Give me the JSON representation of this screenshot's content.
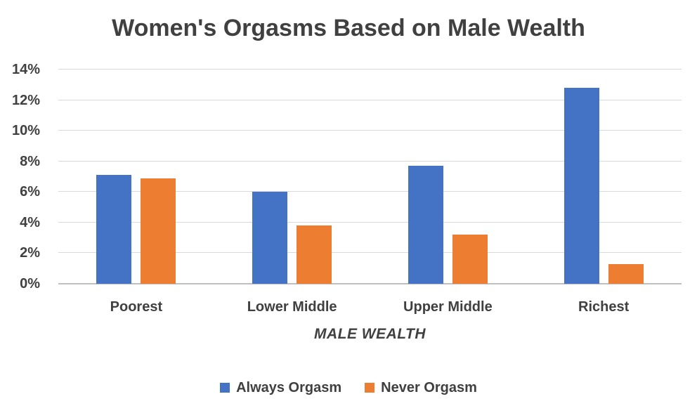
{
  "title": "Women's Orgasms Based on Male Wealth",
  "chart_data": {
    "type": "bar",
    "title": "Women's Orgasms Based on Male Wealth",
    "categories": [
      "Poorest",
      "Lower Middle",
      "Upper Middle",
      "Richest"
    ],
    "series": [
      {
        "name": "Always Orgasm",
        "color": "#4472C4",
        "values": [
          7.1,
          6.0,
          7.7,
          12.8
        ]
      },
      {
        "name": "Never Orgasm",
        "color": "#ED7D31",
        "values": [
          6.9,
          3.8,
          3.2,
          1.3
        ]
      }
    ],
    "xlabel": "MALE WEALTH",
    "ylabel": "",
    "ylim": [
      0,
      14
    ],
    "yticks": [
      {
        "value": 14,
        "label": "14%"
      },
      {
        "value": 12,
        "label": "12%"
      },
      {
        "value": 10,
        "label": "10%"
      },
      {
        "value": 8,
        "label": "8%"
      },
      {
        "value": 6,
        "label": "6%"
      },
      {
        "value": 4,
        "label": "4%"
      },
      {
        "value": 2,
        "label": "2%"
      },
      {
        "value": 0,
        "label": "0%"
      }
    ],
    "grid": true,
    "legend_position": "bottom"
  },
  "colors": {
    "series_always": "#4472C4",
    "series_never": "#ED7D31",
    "text": "#404040",
    "gridline": "#d9d9d9",
    "axis_line": "#bfbfbf",
    "background": "#ffffff"
  }
}
